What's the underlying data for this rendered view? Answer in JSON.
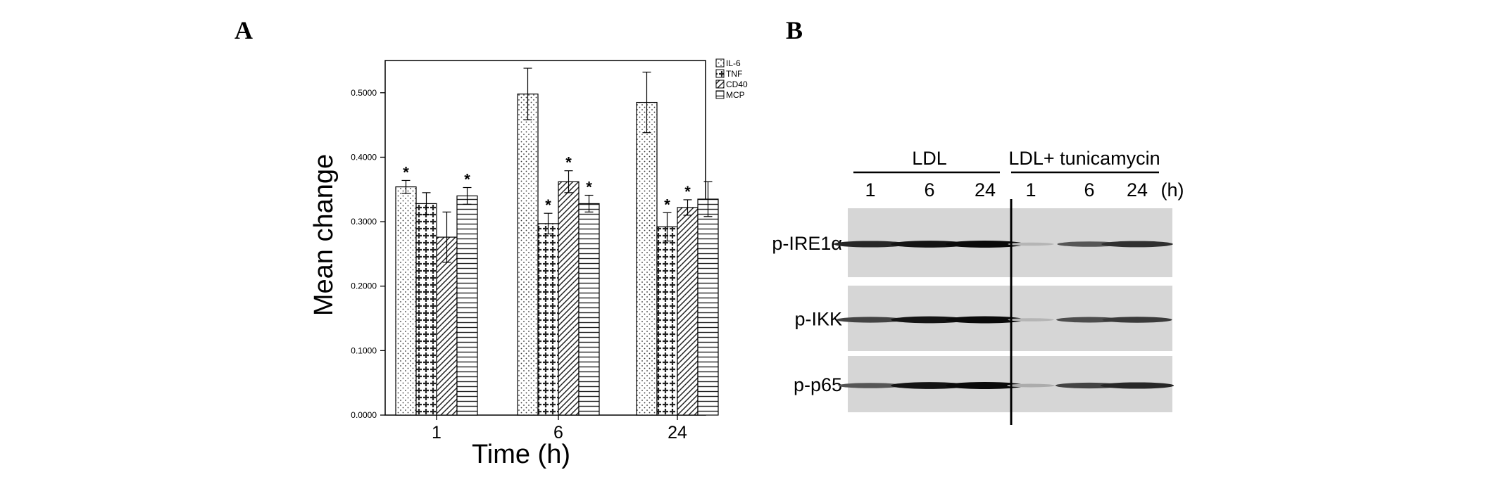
{
  "panels": {
    "a_label": "A",
    "b_label": "B"
  },
  "chart_data": {
    "type": "bar",
    "xlabel": "Time (h)",
    "ylabel": "Mean change",
    "categories": [
      "1",
      "6",
      "24"
    ],
    "ylim": [
      0,
      0.55
    ],
    "yticks": [
      "0.0000",
      "0.1000",
      "0.2000",
      "0.3000",
      "0.4000",
      "0.5000"
    ],
    "ytick_values": [
      0,
      0.1,
      0.2,
      0.3,
      0.4,
      0.5
    ],
    "grid": false,
    "legend_position": "top-right",
    "series": [
      {
        "name": "IL-6",
        "pattern": "dots",
        "values": [
          0.354,
          0.498,
          0.485
        ],
        "errors": [
          0.01,
          0.04,
          0.047
        ],
        "star": [
          "*",
          "",
          ""
        ]
      },
      {
        "name": "TNF",
        "pattern": "crosses",
        "values": [
          0.328,
          0.297,
          0.292
        ],
        "errors": [
          0.017,
          0.016,
          0.022
        ],
        "star": [
          "",
          "*",
          "*"
        ]
      },
      {
        "name": "CD40",
        "pattern": "diagonal",
        "values": [
          0.276,
          0.362,
          0.322
        ],
        "errors": [
          0.039,
          0.017,
          0.012
        ],
        "star": [
          "",
          "*",
          "*"
        ]
      },
      {
        "name": "MCP",
        "pattern": "horizontal",
        "values": [
          0.34,
          0.328,
          0.335
        ],
        "errors": [
          0.013,
          0.013,
          0.027
        ],
        "star": [
          "*",
          "*",
          ""
        ]
      }
    ]
  },
  "blot": {
    "group_labels": [
      "LDL",
      "LDL+ tunicamycin"
    ],
    "lanes": [
      "1",
      "6",
      "24",
      "1",
      "6",
      "24"
    ],
    "unit": "(h)",
    "rows": [
      {
        "label": "p-IRE1α",
        "intensity": [
          0.85,
          0.95,
          1.0,
          0.1,
          0.6,
          0.8
        ]
      },
      {
        "label": "p-IKK",
        "intensity": [
          0.7,
          0.95,
          1.0,
          0.1,
          0.65,
          0.75
        ]
      },
      {
        "label": "p-p65",
        "intensity": [
          0.6,
          0.95,
          1.0,
          0.15,
          0.7,
          0.85
        ]
      }
    ]
  }
}
